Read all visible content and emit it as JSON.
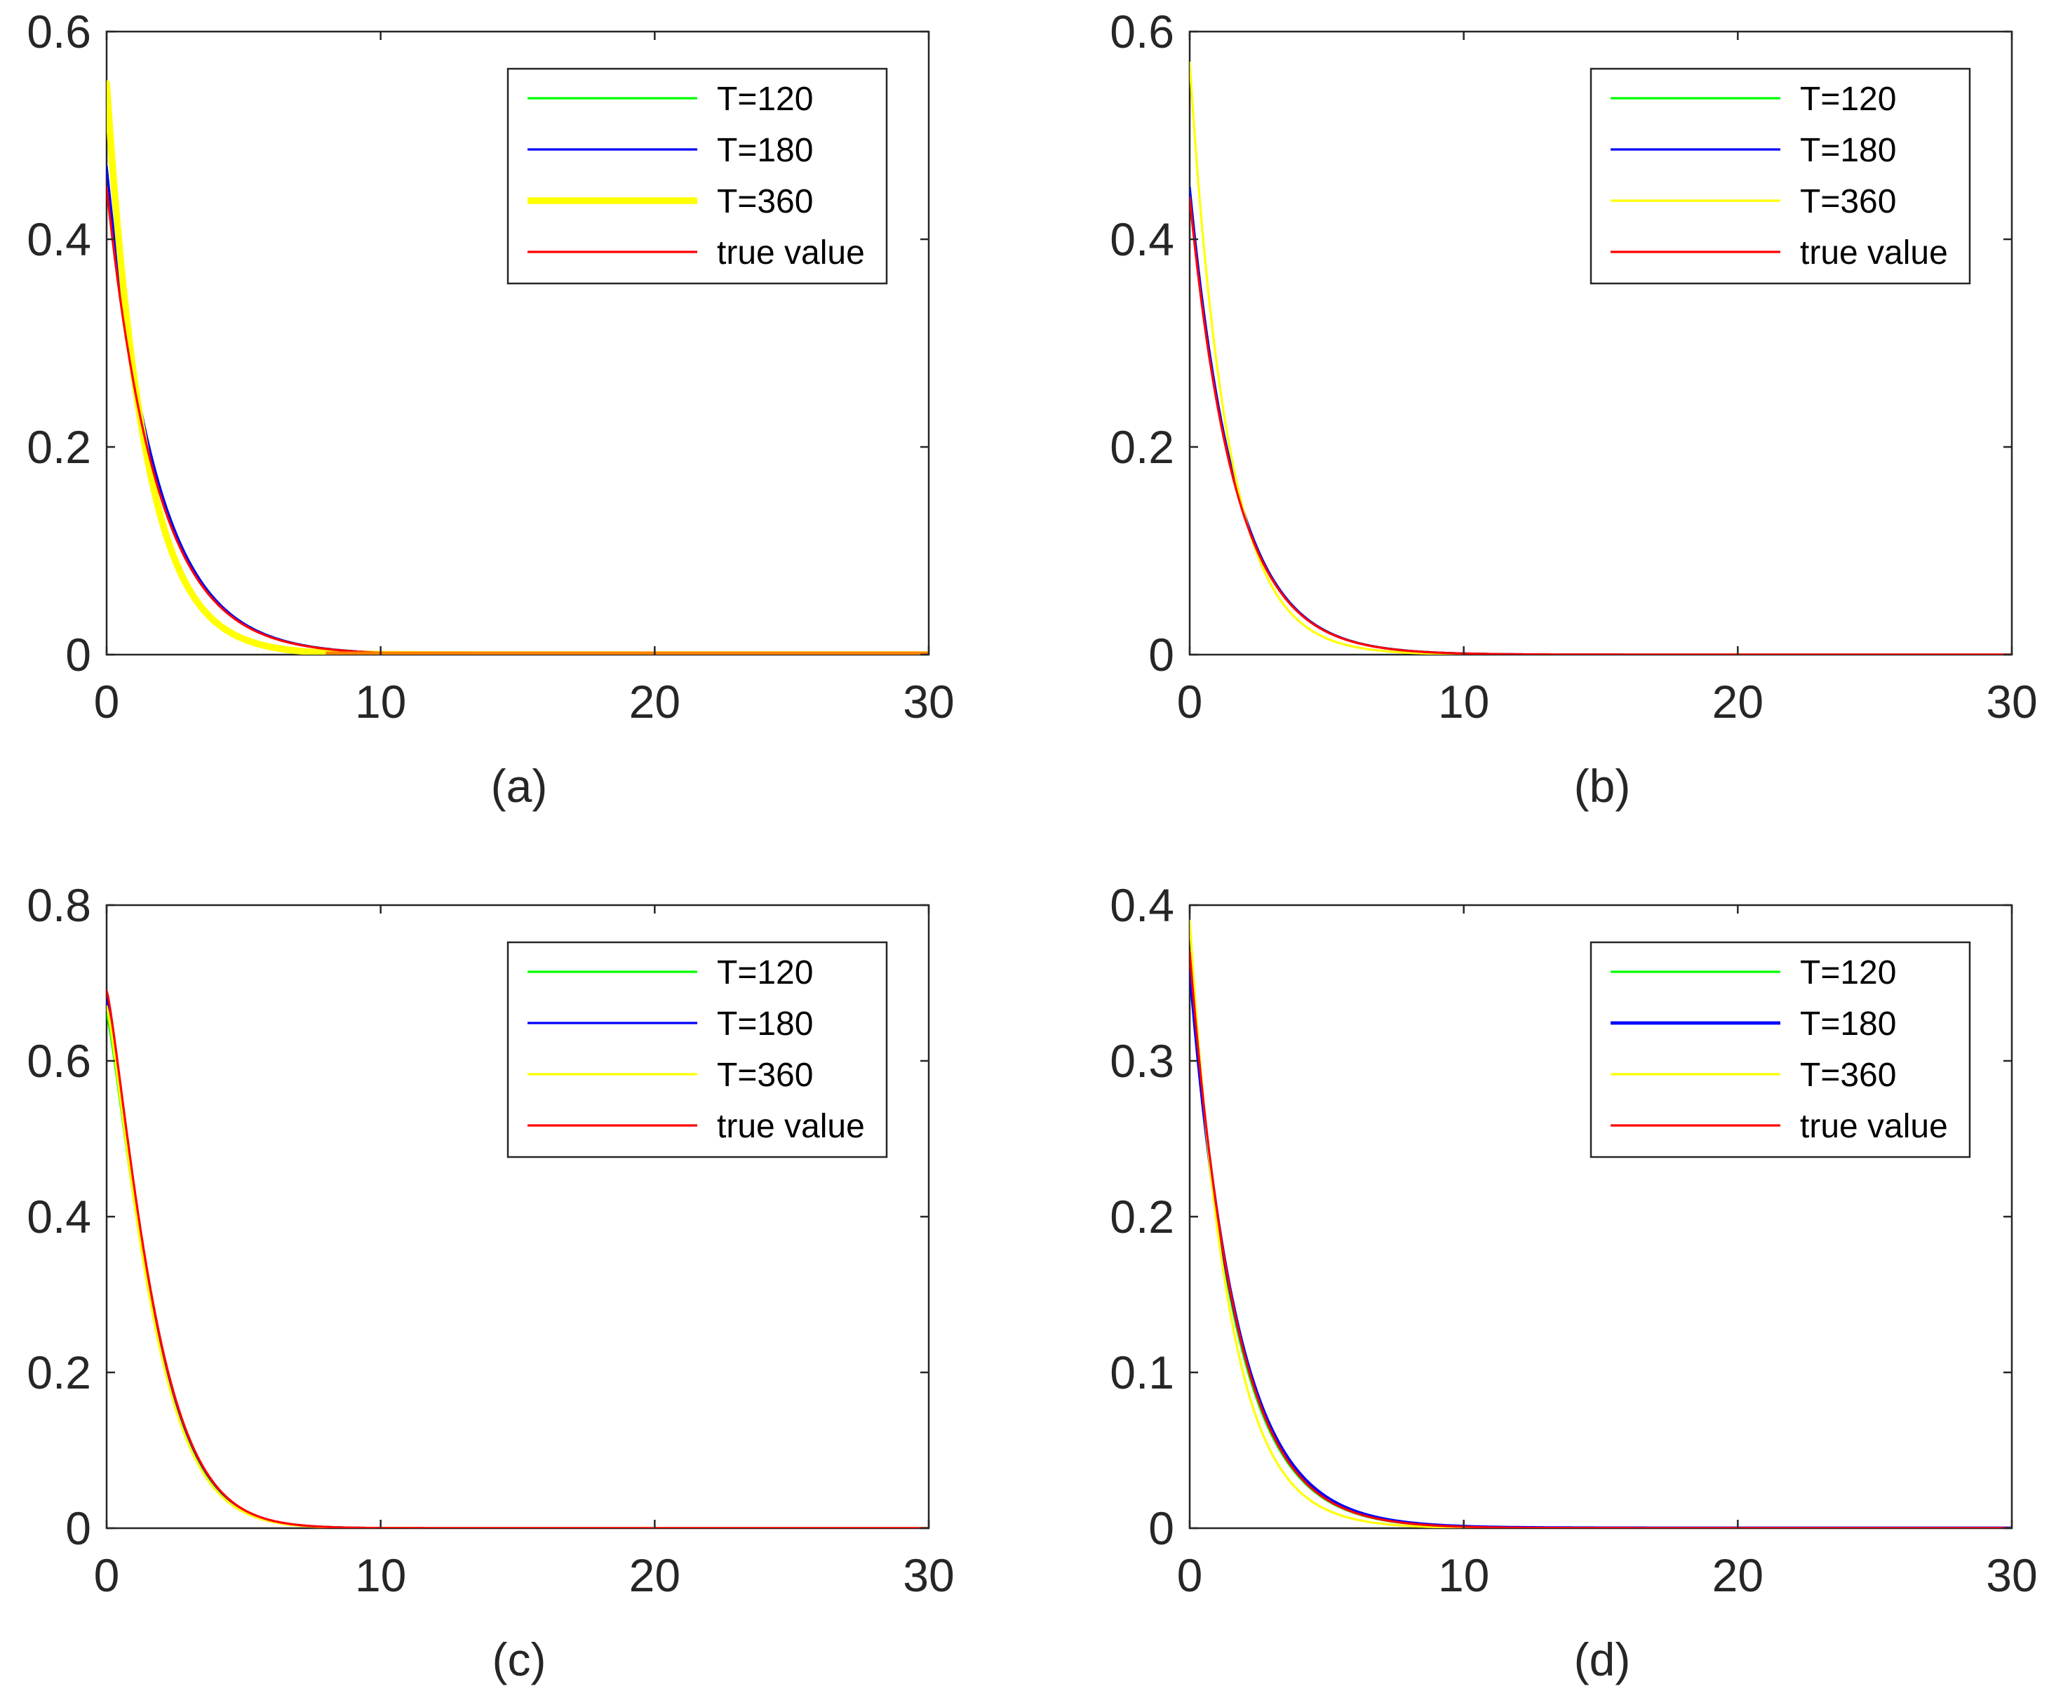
{
  "chart_data": [
    {
      "id": "a",
      "type": "line",
      "caption": "(a)",
      "xlim": [
        0,
        30
      ],
      "ylim": [
        0,
        0.6
      ],
      "xticks": [
        "0",
        "10",
        "20",
        "30"
      ],
      "yticks": [
        "0",
        "0.2",
        "0.4",
        "0.6"
      ],
      "grid": false,
      "legend_position": "top-right",
      "series": [
        {
          "name": "T=120",
          "color": "#00ff00",
          "width": 2,
          "start": 0.47,
          "decay": 0.55
        },
        {
          "name": "T=180",
          "color": "#0000ff",
          "width": 2,
          "start": 0.47,
          "decay": 0.55
        },
        {
          "name": "T=360",
          "color": "#ffff00",
          "width": 6,
          "start": 0.55,
          "decay": 0.72
        },
        {
          "name": "true value",
          "color": "#ff0000",
          "width": 2,
          "start": 0.45,
          "decay": 0.55
        }
      ],
      "tail_color": "#ff8000"
    },
    {
      "id": "b",
      "type": "line",
      "caption": "(b)",
      "xlim": [
        0,
        30
      ],
      "ylim": [
        0,
        0.6
      ],
      "xticks": [
        "0",
        "10",
        "20",
        "30"
      ],
      "yticks": [
        "0",
        "0.2",
        "0.4",
        "0.6"
      ],
      "grid": false,
      "legend_position": "top-right",
      "series": [
        {
          "name": "T=120",
          "color": "#00ff00",
          "width": 2,
          "start": 0.45,
          "decay": 0.6
        },
        {
          "name": "T=180",
          "color": "#0000ff",
          "width": 2,
          "start": 0.45,
          "decay": 0.6
        },
        {
          "name": "T=360",
          "color": "#ffff00",
          "width": 2,
          "start": 0.57,
          "decay": 0.72
        },
        {
          "name": "true value",
          "color": "#ff0000",
          "width": 2,
          "start": 0.44,
          "decay": 0.6
        }
      ]
    },
    {
      "id": "c",
      "type": "line",
      "caption": "(c)",
      "xlim": [
        0,
        30
      ],
      "ylim": [
        0,
        0.8
      ],
      "xticks": [
        "0",
        "10",
        "20",
        "30"
      ],
      "yticks": [
        "0",
        "0.2",
        "0.4",
        "0.6",
        "0.8"
      ],
      "grid": false,
      "legend_position": "top-right",
      "series": [
        {
          "name": "T=120",
          "color": "#00ff00",
          "width": 2,
          "start": 0.66,
          "decay": 0.6
        },
        {
          "name": "T=180",
          "color": "#0000ff",
          "width": 2,
          "start": 0.68,
          "decay": 0.6
        },
        {
          "name": "T=360",
          "color": "#ffff00",
          "width": 2,
          "start": 0.67,
          "decay": 0.62
        },
        {
          "name": "true value",
          "color": "#ff0000",
          "width": 2,
          "start": 0.69,
          "decay": 0.6
        }
      ],
      "shape": "sigmoid"
    },
    {
      "id": "d",
      "type": "line",
      "caption": "(d)",
      "xlim": [
        0,
        30
      ],
      "ylim": [
        0,
        0.4
      ],
      "xticks": [
        "0",
        "10",
        "20",
        "30"
      ],
      "yticks": [
        "0",
        "0.1",
        "0.2",
        "0.3",
        "0.4"
      ],
      "grid": false,
      "legend_position": "top-right",
      "series": [
        {
          "name": "T=120",
          "color": "#00ff00",
          "width": 2,
          "start": 0.36,
          "decay": 0.6
        },
        {
          "name": "T=180",
          "color": "#0000ff",
          "width": 3,
          "start": 0.36,
          "decay": 0.58
        },
        {
          "name": "T=360",
          "color": "#ffff00",
          "width": 2,
          "start": 0.39,
          "decay": 0.7
        },
        {
          "name": "true value",
          "color": "#ff0000",
          "width": 2,
          "start": 0.37,
          "decay": 0.6
        }
      ]
    }
  ]
}
